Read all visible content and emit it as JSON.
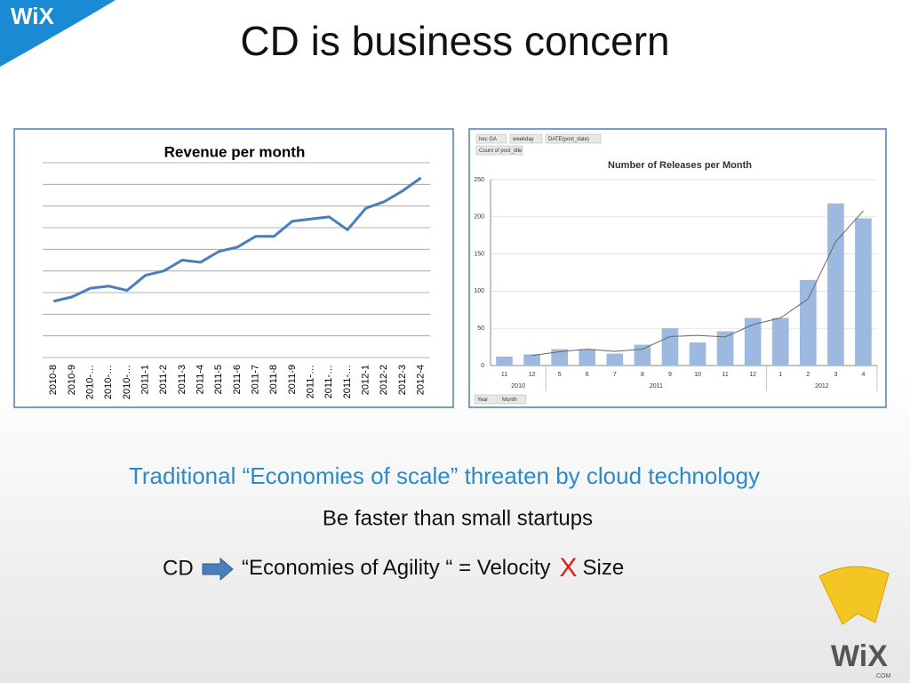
{
  "slide": {
    "title": "CD is business concern",
    "logo_top": "WiX",
    "logo_bottom": "WiX",
    "logo_bottom_sub": ".COM",
    "line1": "Traditional “Economies of scale” threaten by cloud technology",
    "line2": "Be faster than small startups",
    "line3_start": "CD",
    "line3_middle": "“Economies of Agility “ = Velocity",
    "line3_x": "X",
    "line3_end": "Size",
    "pivot_buttons": [
      "hec GA",
      "weekday",
      "DATE(post_date)",
      "Count of post_title",
      "Year",
      "Month"
    ]
  },
  "chart_data": [
    {
      "type": "line",
      "title": "Revenue per month",
      "categories": [
        "2010-8",
        "2010-9",
        "2010-…",
        "2010-…",
        "2010-…",
        "2011-1",
        "2011-2",
        "2011-3",
        "2011-4",
        "2011-5",
        "2011-6",
        "2011-7",
        "2011-8",
        "2011-9",
        "2011-…",
        "2011-…",
        "2011-…",
        "2012-1",
        "2012-2",
        "2012-3",
        "2012-4"
      ],
      "values": [
        2.6,
        2.8,
        3.2,
        3.3,
        3.1,
        3.8,
        4.0,
        4.5,
        4.4,
        4.9,
        5.1,
        5.6,
        5.6,
        6.3,
        6.4,
        6.5,
        5.9,
        6.9,
        7.2,
        7.7,
        8.3
      ],
      "color": "#4a7ebb",
      "ylim": [
        0,
        9
      ],
      "yticks": [
        0,
        1,
        2,
        3,
        4,
        5,
        6,
        7,
        8,
        9
      ],
      "grid": true,
      "tick_labels": false
    },
    {
      "type": "bar",
      "title": "Number of Releases per Month",
      "categories": [
        "11",
        "12",
        "5",
        "6",
        "7",
        "8",
        "9",
        "10",
        "11",
        "12",
        "1",
        "2",
        "3",
        "4"
      ],
      "x_groups": [
        {
          "label": "2010",
          "span": 2
        },
        {
          "label": "2011",
          "span": 8
        },
        {
          "label": "2012",
          "span": 4
        }
      ],
      "series": [
        {
          "type": "bar",
          "color": "#9db9e0",
          "values": [
            12,
            15,
            22,
            22,
            16,
            28,
            50,
            31,
            46,
            64,
            64,
            115,
            218,
            198
          ]
        },
        {
          "type": "line",
          "color": "#666666",
          "values": [
            null,
            13.5,
            18.5,
            22,
            19,
            22,
            39,
            40.5,
            38.5,
            55,
            64,
            89.5,
            166.5,
            208
          ]
        }
      ],
      "ylim": [
        0,
        250
      ],
      "yticks": [
        0,
        50,
        100,
        150,
        200,
        250
      ],
      "grid": true
    }
  ]
}
